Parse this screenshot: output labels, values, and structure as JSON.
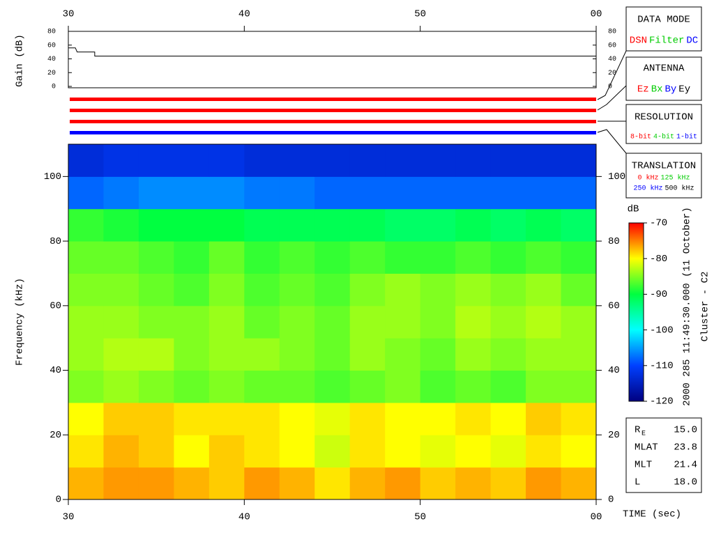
{
  "chart_data": [
    {
      "type": "line",
      "ylabel": "Gain (dB)",
      "x": [
        30,
        30.4,
        30.5,
        31.5,
        31.5,
        60
      ],
      "series": [
        {
          "color": "#000000",
          "values": [
            56,
            56,
            50,
            50,
            44,
            44
          ]
        }
      ],
      "xlim": [
        30,
        60
      ],
      "xticks": [
        30,
        40,
        50,
        {
          "value": 60,
          "label": "00"
        }
      ],
      "ylim": [
        0,
        80
      ],
      "yticks": [
        0,
        20,
        40,
        60,
        80
      ]
    },
    {
      "type": "heatmap",
      "ylabel": "Frequency (kHz)",
      "xlabel": "TIME (sec)",
      "xbins": [
        30,
        32,
        34,
        36,
        38,
        40,
        42,
        44,
        46,
        48,
        50,
        52,
        54,
        56,
        58,
        60
      ],
      "ybins": [
        0,
        10,
        20,
        30,
        40,
        50,
        60,
        70,
        80,
        90,
        100,
        110
      ],
      "values": [
        [
          -77,
          -76,
          -76,
          -77,
          -78,
          -76,
          -77,
          -79,
          -77,
          -76,
          -78,
          -77,
          -78,
          -76,
          -77
        ],
        [
          -79,
          -77,
          -78,
          -80,
          -78,
          -79,
          -80,
          -82,
          -79,
          -80,
          -81,
          -80,
          -81,
          -79,
          -80
        ],
        [
          -80,
          -78,
          -78,
          -79,
          -79,
          -79,
          -80,
          -81,
          -79,
          -80,
          -80,
          -79,
          -80,
          -78,
          -79
        ],
        [
          -85,
          -84,
          -85,
          -86,
          -85,
          -86,
          -86,
          -87,
          -86,
          -85,
          -87,
          -86,
          -87,
          -85,
          -85
        ],
        [
          -84,
          -83,
          -83,
          -85,
          -84,
          -84,
          -85,
          -86,
          -84,
          -85,
          -86,
          -84,
          -85,
          -84,
          -84
        ],
        [
          -84,
          -84,
          -85,
          -85,
          -84,
          -86,
          -85,
          -86,
          -84,
          -84,
          -85,
          -83,
          -84,
          -83,
          -84
        ],
        [
          -85,
          -85,
          -86,
          -87,
          -85,
          -87,
          -86,
          -87,
          -85,
          -84,
          -85,
          -84,
          -85,
          -84,
          -86
        ],
        [
          -86,
          -86,
          -87,
          -88,
          -86,
          -88,
          -87,
          -88,
          -87,
          -88,
          -88,
          -87,
          -88,
          -87,
          -88
        ],
        [
          -88,
          -89,
          -90,
          -90,
          -90,
          -91,
          -91,
          -91,
          -91,
          -92,
          -92,
          -91,
          -92,
          -91,
          -92
        ],
        [
          -108,
          -107,
          -106,
          -106,
          -106,
          -107,
          -107,
          -108,
          -108,
          -108,
          -108,
          -108,
          -108,
          -108,
          -108
        ],
        [
          -113,
          -112,
          -112,
          -112,
          -112,
          -113,
          -113,
          -113,
          -113,
          -113,
          -113,
          -113,
          -113,
          -113,
          -113
        ]
      ],
      "xlim": [
        30,
        60
      ],
      "xticks": [
        30,
        40,
        50,
        {
          "value": 60,
          "label": "00"
        }
      ],
      "ylim": [
        0,
        110
      ],
      "yticks": [
        0,
        20,
        40,
        60,
        80,
        100
      ],
      "colormap": [
        "#000080",
        "#0040ff",
        "#00ffff",
        "#00ff40",
        "#ffff00",
        "#ff0000"
      ],
      "colorbar": {
        "label": "dB",
        "lim": [
          -120,
          -70
        ],
        "ticks": [
          -70,
          -80,
          -90,
          -100,
          -110,
          -120
        ]
      },
      "annotations": [
        "2000 285 11:49:30.000 (11 October)",
        "Cluster - C2"
      ]
    }
  ],
  "status_bars": [
    "#ff0000",
    "#ff0000",
    "#ff0000",
    "#0000ff"
  ],
  "legend_panels": [
    {
      "title": "DATA MODE",
      "items": [
        {
          "text": "DSN",
          "color": "#ff0000"
        },
        {
          "text": "Filter",
          "color": "#00cc00"
        },
        {
          "text": "DC",
          "color": "#0000ff"
        }
      ]
    },
    {
      "title": "ANTENNA",
      "items": [
        {
          "text": "Ez",
          "color": "#ff0000"
        },
        {
          "text": "Bx",
          "color": "#00cc00"
        },
        {
          "text": "By",
          "color": "#0000ff"
        },
        {
          "text": "Ey",
          "color": "#000000"
        }
      ]
    },
    {
      "title": "RESOLUTION",
      "items": [
        {
          "text": "8-bit",
          "color": "#ff0000"
        },
        {
          "text": "4-bit",
          "color": "#00cc00"
        },
        {
          "text": "1-bit",
          "color": "#0000ff"
        }
      ]
    },
    {
      "title": "TRANSLATION",
      "items": [
        {
          "text": "0 kHz",
          "color": "#ff0000"
        },
        {
          "text": "125 kHz",
          "color": "#00cc00"
        },
        {
          "text": "250 kHz",
          "color": "#0000ff"
        },
        {
          "text": "500 kHz",
          "color": "#000000"
        }
      ]
    }
  ],
  "info": [
    {
      "label": "R",
      "sub": "E",
      "value": "15.0"
    },
    {
      "label": "MLAT",
      "value": "23.8"
    },
    {
      "label": "MLT",
      "value": "21.4"
    },
    {
      "label": "L",
      "value": "18.0"
    }
  ]
}
